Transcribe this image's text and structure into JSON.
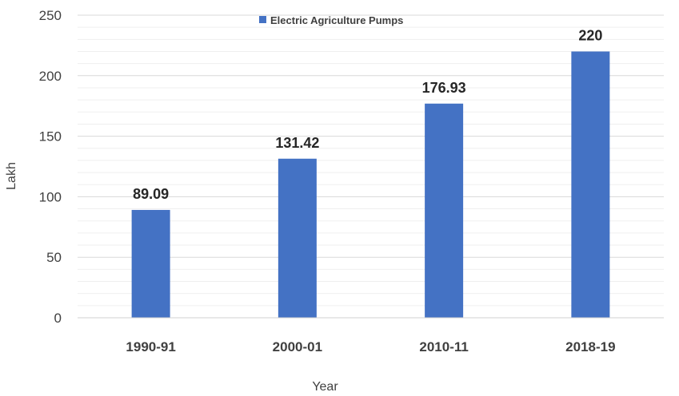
{
  "chart_data": {
    "type": "bar",
    "categories": [
      "1990-91",
      "2000-01",
      "2010-11",
      "2018-19"
    ],
    "series": [
      {
        "name": "Electric Agriculture Pumps",
        "values": [
          89.09,
          131.42,
          176.93,
          220
        ]
      }
    ],
    "data_labels": [
      "89.09",
      "131.42",
      "176.93",
      "220"
    ],
    "title": "",
    "xlabel": "Year",
    "ylabel": "Lakh",
    "ylim": [
      0,
      250
    ],
    "yticks": [
      0,
      50,
      100,
      150,
      200,
      250
    ],
    "grid": true,
    "legend": "top-center",
    "bar_color": "#4472C4"
  }
}
